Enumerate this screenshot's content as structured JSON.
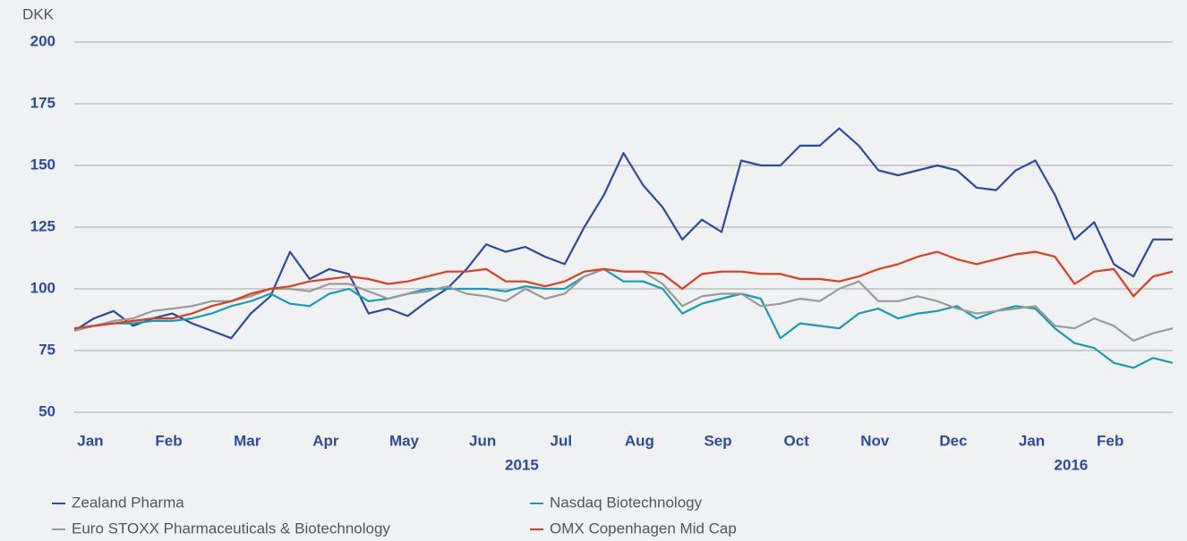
{
  "chart_data": {
    "type": "line",
    "y_unit": "DKK",
    "categories": [
      null,
      "Jan",
      null,
      null,
      null,
      "Feb",
      null,
      null,
      null,
      "Mar",
      null,
      null,
      null,
      "Apr",
      null,
      null,
      null,
      "May",
      null,
      null,
      null,
      "Jun",
      null,
      null,
      null,
      "Jul",
      null,
      null,
      null,
      "Aug",
      null,
      null,
      null,
      "Sep",
      null,
      null,
      null,
      "Oct",
      null,
      null,
      null,
      "Nov",
      null,
      null,
      null,
      "Dec",
      null,
      null,
      null,
      "Jan",
      null,
      null,
      null,
      "Feb",
      null,
      null,
      null
    ],
    "year_labels": [
      "2015",
      "2016"
    ],
    "ylim": [
      50,
      200
    ],
    "yticks": [
      50,
      75,
      100,
      125,
      150,
      175,
      200
    ],
    "grid": true,
    "legend": "bottom",
    "series": [
      {
        "name": "Zealand Pharma",
        "color": "#2e4a9e",
        "values": [
          83,
          88,
          91,
          85,
          88,
          90,
          86,
          83,
          80,
          90,
          97,
          115,
          104,
          108,
          106,
          90,
          92,
          89,
          95,
          100,
          108,
          118,
          115,
          117,
          113,
          110,
          125,
          138,
          155,
          142,
          133,
          120,
          128,
          123,
          152,
          150,
          150,
          158,
          158,
          165,
          158,
          148,
          146,
          148,
          150,
          148,
          141,
          140,
          148,
          152,
          138,
          120,
          127,
          110,
          105,
          120,
          120
        ]
      },
      {
        "name": "Nasdaq Biotechnology",
        "color": "#1a9bb5",
        "values": [
          84,
          85,
          86,
          86,
          87,
          87,
          88,
          90,
          93,
          95,
          98,
          94,
          93,
          98,
          100,
          95,
          96,
          98,
          100,
          100,
          100,
          100,
          99,
          101,
          100,
          100,
          105,
          108,
          103,
          103,
          100,
          90,
          94,
          96,
          98,
          96,
          80,
          86,
          85,
          84,
          90,
          92,
          88,
          90,
          91,
          93,
          88,
          91,
          93,
          92,
          84,
          78,
          76,
          70,
          68,
          72,
          70
        ]
      },
      {
        "name": "Euro STOXX Pharmaceuticals & Biotechnology",
        "color": "#9a9a9a",
        "values": [
          83,
          85,
          87,
          88,
          91,
          92,
          93,
          95,
          95,
          97,
          100,
          100,
          99,
          102,
          102,
          99,
          96,
          98,
          99,
          101,
          98,
          97,
          95,
          100,
          96,
          98,
          105,
          108,
          107,
          107,
          102,
          93,
          97,
          98,
          98,
          93,
          94,
          96,
          95,
          100,
          103,
          95,
          95,
          97,
          95,
          92,
          90,
          91,
          92,
          93,
          85,
          84,
          88,
          85,
          79,
          82,
          84
        ]
      },
      {
        "name": "OMX Copenhagen Mid Cap",
        "color": "#e03c1f",
        "values": [
          84,
          85,
          86,
          87,
          88,
          88,
          90,
          93,
          95,
          98,
          100,
          101,
          103,
          104,
          105,
          104,
          102,
          103,
          105,
          107,
          107,
          108,
          103,
          103,
          101,
          103,
          107,
          108,
          107,
          107,
          106,
          100,
          106,
          107,
          107,
          106,
          106,
          104,
          104,
          103,
          105,
          108,
          110,
          113,
          115,
          112,
          110,
          112,
          114,
          115,
          113,
          102,
          107,
          108,
          97,
          105,
          107
        ]
      }
    ]
  }
}
